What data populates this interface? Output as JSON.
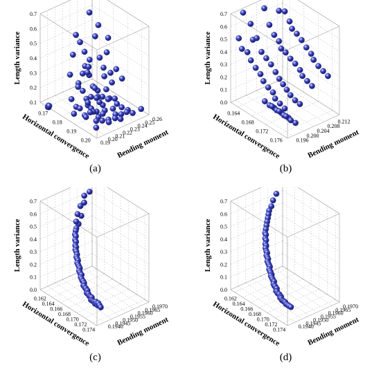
{
  "chart_data": [
    {
      "type": "scatter",
      "panel_label": "(a)",
      "xlabel": "Horizontal convergence",
      "ylabel": "Bending moment",
      "zlabel": "Length variance",
      "x_ticks": [
        "0.17",
        "0.18",
        "0.19",
        "0.20"
      ],
      "y_ticks": [
        "0.19",
        "0.20",
        "0.21",
        "0.22",
        "0.23",
        "0.24",
        "0.25",
        "0.26"
      ],
      "z_ticks": [
        "0.1",
        "0.2",
        "0.3",
        "0.4",
        "0.5",
        "0.6",
        "0.7"
      ],
      "xlim": [
        0.165,
        0.205
      ],
      "ylim": [
        0.19,
        0.26
      ],
      "zlim": [
        0.1,
        0.7
      ],
      "point_color": "#3d46c8",
      "x": [
        0.1703,
        0.1705,
        0.1707,
        0.1709,
        0.1786,
        0.1796,
        0.1798,
        0.1801,
        0.1803,
        0.1805,
        0.1807,
        0.1809,
        0.1811,
        0.1813,
        0.1815,
        0.1817,
        0.1819,
        0.1821,
        0.1823,
        0.1825,
        0.1829,
        0.1833,
        0.1846,
        0.1852,
        0.1854,
        0.1856,
        0.1858,
        0.186,
        0.1862,
        0.1864,
        0.1866,
        0.1868,
        0.187,
        0.1873,
        0.1875,
        0.1878,
        0.188,
        0.1884,
        0.1886,
        0.189,
        0.1892,
        0.1894,
        0.1897,
        0.19,
        0.1903,
        0.1906,
        0.1909,
        0.1912,
        0.1915,
        0.1918,
        0.1921,
        0.1924,
        0.1927,
        0.193,
        0.1933,
        0.1937,
        0.194,
        0.1944,
        0.1948,
        0.1952,
        0.1956,
        0.196,
        0.1964,
        0.1968,
        0.1972,
        0.1976,
        0.198,
        0.1984,
        0.1988,
        0.1992,
        0.1996,
        0.2,
        0.2004,
        0.201,
        0.2018
      ],
      "y": [
        0.1902,
        0.1904,
        0.1906,
        0.1908,
        0.2303,
        0.2102,
        0.2154,
        0.2053,
        0.2409,
        0.2207,
        0.2002,
        0.2256,
        0.2108,
        0.2452,
        0.2157,
        0.2002,
        0.2351,
        0.2257,
        0.2054,
        0.2403,
        0.2201,
        0.2005,
        0.2308,
        0.2255,
        0.2107,
        0.2403,
        0.2154,
        0.2352,
        0.2006,
        0.2201,
        0.2454,
        0.2105,
        0.2257,
        0.2008,
        0.2403,
        0.2151,
        0.2304,
        0.2052,
        0.2209,
        0.2356,
        0.2103,
        0.2005,
        0.2452,
        0.2158,
        0.2306,
        0.2052,
        0.2203,
        0.2404,
        0.2107,
        0.2004,
        0.2252,
        0.2357,
        0.2155,
        0.2002,
        0.2306,
        0.2454,
        0.2105,
        0.2252,
        0.2003,
        0.2356,
        0.2158,
        0.2405,
        0.2054,
        0.2306,
        0.2203,
        0.2457,
        0.2105,
        0.2352,
        0.2008,
        0.2254,
        0.2403,
        0.2155,
        0.2306,
        0.2457,
        0.2556
      ],
      "z": [
        0.1,
        0.11,
        0.1,
        0.11,
        0.7,
        0.6,
        0.54,
        0.48,
        0.38,
        0.37,
        0.36,
        0.3,
        0.28,
        0.25,
        0.22,
        0.2,
        0.18,
        0.16,
        0.14,
        0.13,
        0.12,
        0.11,
        0.65,
        0.59,
        0.52,
        0.45,
        0.41,
        0.36,
        0.31,
        0.27,
        0.24,
        0.21,
        0.19,
        0.17,
        0.15,
        0.14,
        0.13,
        0.12,
        0.11,
        0.58,
        0.49,
        0.42,
        0.35,
        0.29,
        0.25,
        0.22,
        0.19,
        0.17,
        0.15,
        0.14,
        0.13,
        0.12,
        0.11,
        0.45,
        0.38,
        0.31,
        0.26,
        0.22,
        0.19,
        0.17,
        0.15,
        0.14,
        0.13,
        0.12,
        0.11,
        0.12,
        0.13,
        0.12,
        0.11,
        0.12,
        0.13,
        0.12,
        0.11,
        0.12,
        0.13
      ]
    },
    {
      "type": "scatter",
      "panel_label": "(b)",
      "xlabel": "Horizontal convergence",
      "ylabel": "Bending moment",
      "zlabel": "Length variance",
      "x_ticks": [
        "0.164",
        "0.168",
        "0.172",
        "0.176"
      ],
      "y_ticks": [
        "0.196",
        "0.200",
        "0.204",
        "0.208",
        "0.212"
      ],
      "z_ticks": [
        "0.0",
        "0.1",
        "0.2",
        "0.3",
        "0.4",
        "0.5",
        "0.6",
        "0.7"
      ],
      "xlim": [
        0.162,
        0.178
      ],
      "ylim": [
        0.194,
        0.214
      ],
      "zlim": [
        0.0,
        0.7
      ],
      "point_color": "#3d46c8",
      "x": [
        0.1625,
        0.163,
        0.1628,
        0.1634,
        0.1632,
        0.1638,
        0.1636,
        0.1642,
        0.1645,
        0.1648,
        0.1651,
        0.1654,
        0.1657,
        0.166,
        0.1663,
        0.1666,
        0.1669,
        0.1672,
        0.1675,
        0.1678,
        0.1681,
        0.1684,
        0.1687,
        0.169,
        0.1693,
        0.1696,
        0.1699,
        0.1702,
        0.1705,
        0.1708,
        0.1711,
        0.1714,
        0.1717,
        0.172,
        0.1723,
        0.1726,
        0.1729,
        0.1732,
        0.1735,
        0.1738,
        0.1741,
        0.1744,
        0.1747,
        0.175,
        0.1753,
        0.1756,
        0.1759,
        0.1762,
        0.1765,
        0.1768,
        0.1771,
        0.17,
        0.1706,
        0.1712,
        0.1718,
        0.1724,
        0.173,
        0.1736,
        0.1742,
        0.1748,
        0.1754,
        0.176,
        0.1766
      ],
      "y": [
        0.1981,
        0.2003,
        0.2102,
        0.1952,
        0.2053,
        0.2001,
        0.2104,
        0.1953,
        0.2055,
        0.2002,
        0.2106,
        0.1958,
        0.2057,
        0.2004,
        0.2108,
        0.1955,
        0.2059,
        0.2006,
        0.2101,
        0.1957,
        0.2051,
        0.2008,
        0.2103,
        0.1959,
        0.2052,
        0.2009,
        0.2105,
        0.1954,
        0.2054,
        0.2007,
        0.2107,
        0.1956,
        0.2056,
        0.2005,
        0.2109,
        0.1958,
        0.2058,
        0.2003,
        0.2102,
        0.195,
        0.2051,
        0.2001,
        0.2104,
        0.1952,
        0.2053,
        0.2002,
        0.2106,
        0.1954,
        0.2055,
        0.2004,
        0.2108,
        0.1962,
        0.1972,
        0.1982,
        0.1965,
        0.1975,
        0.1985,
        0.1968,
        0.1978,
        0.1988,
        0.197,
        0.198,
        0.199
      ],
      "z": [
        0.68,
        0.58,
        0.7,
        0.52,
        0.66,
        0.47,
        0.6,
        0.45,
        0.55,
        0.5,
        0.62,
        0.44,
        0.49,
        0.41,
        0.56,
        0.4,
        0.46,
        0.38,
        0.53,
        0.36,
        0.43,
        0.35,
        0.51,
        0.33,
        0.42,
        0.31,
        0.48,
        0.3,
        0.39,
        0.28,
        0.44,
        0.27,
        0.37,
        0.26,
        0.41,
        0.25,
        0.34,
        0.24,
        0.39,
        0.23,
        0.32,
        0.22,
        0.36,
        0.21,
        0.3,
        0.2,
        0.34,
        0.19,
        0.28,
        0.19,
        0.32,
        0.13,
        0.1,
        0.08,
        0.12,
        0.09,
        0.07,
        0.11,
        0.08,
        0.06,
        0.1,
        0.07,
        0.05
      ]
    },
    {
      "type": "scatter",
      "panel_label": "(c)",
      "xlabel": "Horizontal convergence",
      "ylabel": "Bending moment",
      "zlabel": "Length variance",
      "x_ticks": [
        "0.162",
        "0.164",
        "0.166",
        "0.168",
        "0.170",
        "0.172",
        "0.174"
      ],
      "y_ticks": [
        "0.1940",
        "0.1945",
        "0.1950",
        "0.1955",
        "0.1960",
        "0.1965",
        "0.1970"
      ],
      "z_ticks": [
        "0.0",
        "0.1",
        "0.2",
        "0.3",
        "0.4",
        "0.5",
        "0.6",
        "0.7"
      ],
      "xlim": [
        0.161,
        0.175
      ],
      "ylim": [
        0.1935,
        0.197
      ],
      "zlim": [
        0.0,
        0.7
      ],
      "point_color": "#3d46c8",
      "x": [
        0.1615,
        0.162,
        0.1622,
        0.1625,
        0.1627,
        0.1629,
        0.1631,
        0.1633,
        0.1635,
        0.1637,
        0.1639,
        0.1641,
        0.1643,
        0.1645,
        0.1647,
        0.1649,
        0.1651,
        0.1653,
        0.1655,
        0.1657,
        0.1659,
        0.1661,
        0.1663,
        0.1665,
        0.1667,
        0.1669,
        0.1671,
        0.1673,
        0.1675,
        0.1677,
        0.1679,
        0.1681,
        0.1683,
        0.1685,
        0.1687,
        0.1689,
        0.1691,
        0.1693,
        0.1695,
        0.1697,
        0.1699,
        0.1701,
        0.1703,
        0.1705,
        0.1707,
        0.1709,
        0.1711,
        0.1713,
        0.1715,
        0.1717,
        0.1719,
        0.1721,
        0.1723,
        0.1725,
        0.1727,
        0.1729,
        0.1731,
        0.1733,
        0.1735,
        0.1738,
        0.1741
      ],
      "y": [
        0.1968,
        0.1962,
        0.1965,
        0.1958,
        0.196,
        0.1955,
        0.1957,
        0.1953,
        0.1954,
        0.1952,
        0.1951,
        0.195,
        0.195,
        0.1949,
        0.1949,
        0.1948,
        0.1948,
        0.1947,
        0.1947,
        0.1947,
        0.1946,
        0.1946,
        0.1946,
        0.1945,
        0.1945,
        0.1945,
        0.1945,
        0.1944,
        0.1944,
        0.1944,
        0.1944,
        0.1943,
        0.1943,
        0.1943,
        0.1943,
        0.1943,
        0.1942,
        0.1942,
        0.1942,
        0.1942,
        0.1942,
        0.1942,
        0.1941,
        0.1941,
        0.1941,
        0.1941,
        0.1941,
        0.1941,
        0.1941,
        0.194,
        0.194,
        0.194,
        0.194,
        0.194,
        0.194,
        0.194,
        0.194,
        0.194,
        0.194,
        0.194,
        0.194
      ],
      "z": [
        0.69,
        0.62,
        0.64,
        0.57,
        0.59,
        0.53,
        0.51,
        0.49,
        0.47,
        0.45,
        0.44,
        0.42,
        0.41,
        0.39,
        0.38,
        0.36,
        0.35,
        0.34,
        0.33,
        0.31,
        0.3,
        0.29,
        0.28,
        0.27,
        0.26,
        0.25,
        0.24,
        0.23,
        0.22,
        0.21,
        0.21,
        0.2,
        0.19,
        0.18,
        0.18,
        0.17,
        0.16,
        0.16,
        0.15,
        0.15,
        0.14,
        0.14,
        0.13,
        0.13,
        0.13,
        0.12,
        0.12,
        0.12,
        0.12,
        0.11,
        0.11,
        0.11,
        0.11,
        0.11,
        0.1,
        0.12,
        0.11,
        0.1,
        0.12,
        0.11,
        0.1
      ]
    },
    {
      "type": "scatter",
      "panel_label": "(d)",
      "xlabel": "Horizontal convergence",
      "ylabel": "Bending moment",
      "zlabel": "Length variance",
      "x_ticks": [
        "0.162",
        "0.164",
        "0.166",
        "0.168",
        "0.170",
        "0.172",
        "0.174"
      ],
      "y_ticks": [
        "0.1940",
        "0.1945",
        "0.1950",
        "0.1955",
        "0.1960",
        "0.1965",
        "0.1970"
      ],
      "z_ticks": [
        "0.0",
        "0.1",
        "0.2",
        "0.3",
        "0.4",
        "0.5",
        "0.6",
        "0.7"
      ],
      "xlim": [
        0.161,
        0.175
      ],
      "ylim": [
        0.1935,
        0.197
      ],
      "zlim": [
        0.0,
        0.7
      ],
      "point_color": "#3d46c8",
      "x": [
        0.1615,
        0.162,
        0.1623,
        0.1626,
        0.1628,
        0.163,
        0.1632,
        0.1634,
        0.1636,
        0.1638,
        0.164,
        0.1642,
        0.1644,
        0.1646,
        0.1648,
        0.165,
        0.1652,
        0.1654,
        0.1656,
        0.1658,
        0.166,
        0.1662,
        0.1664,
        0.1666,
        0.1668,
        0.167,
        0.1672,
        0.1674,
        0.1676,
        0.1678,
        0.168,
        0.1682,
        0.1684,
        0.1686,
        0.1688,
        0.169,
        0.1692,
        0.1694,
        0.1696,
        0.1698,
        0.17,
        0.1702,
        0.1704,
        0.1706,
        0.1708,
        0.171,
        0.1712,
        0.1714,
        0.1716,
        0.1718,
        0.172,
        0.1722,
        0.1724,
        0.1726,
        0.1728,
        0.173,
        0.1733,
        0.1736,
        0.174
      ],
      "y": [
        0.1968,
        0.1963,
        0.196,
        0.1958,
        0.1956,
        0.1955,
        0.1954,
        0.1953,
        0.1952,
        0.1951,
        0.195,
        0.195,
        0.1949,
        0.1949,
        0.1948,
        0.1948,
        0.1947,
        0.1947,
        0.1947,
        0.1946,
        0.1946,
        0.1946,
        0.1945,
        0.1945,
        0.1945,
        0.1945,
        0.1944,
        0.1944,
        0.1944,
        0.1944,
        0.1943,
        0.1943,
        0.1943,
        0.1943,
        0.1943,
        0.1942,
        0.1942,
        0.1942,
        0.1942,
        0.1942,
        0.1941,
        0.1941,
        0.1941,
        0.1941,
        0.1941,
        0.1941,
        0.1941,
        0.194,
        0.194,
        0.194,
        0.194,
        0.194,
        0.194,
        0.194,
        0.194,
        0.194,
        0.194,
        0.194,
        0.194
      ],
      "z": [
        0.69,
        0.63,
        0.6,
        0.57,
        0.55,
        0.53,
        0.51,
        0.49,
        0.47,
        0.45,
        0.43,
        0.42,
        0.4,
        0.39,
        0.37,
        0.36,
        0.35,
        0.33,
        0.32,
        0.31,
        0.3,
        0.29,
        0.28,
        0.27,
        0.26,
        0.25,
        0.24,
        0.23,
        0.22,
        0.21,
        0.21,
        0.2,
        0.19,
        0.18,
        0.18,
        0.17,
        0.16,
        0.16,
        0.15,
        0.15,
        0.14,
        0.14,
        0.13,
        0.13,
        0.13,
        0.12,
        0.12,
        0.12,
        0.12,
        0.11,
        0.11,
        0.11,
        0.11,
        0.11,
        0.1,
        0.1,
        0.1,
        0.1,
        0.1
      ]
    }
  ]
}
